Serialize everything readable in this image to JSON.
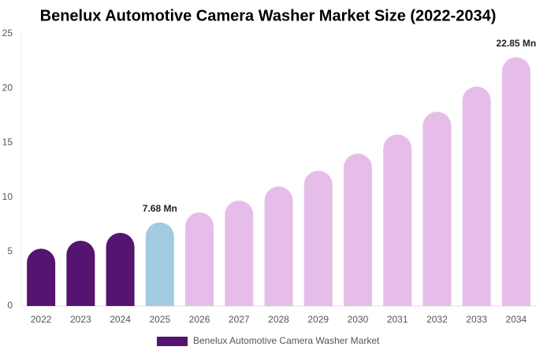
{
  "chart_data": {
    "type": "bar",
    "title": "Benelux Automotive Camera Washer Market Size (2022-2034)",
    "categories": [
      "2022",
      "2023",
      "2024",
      "2025",
      "2026",
      "2027",
      "2028",
      "2029",
      "2030",
      "2031",
      "2032",
      "2033",
      "2034"
    ],
    "series": [
      {
        "name": "Benelux Automotive Camera Washer Market",
        "color": "#541470",
        "values": [
          5.27,
          6.0,
          6.72,
          7.68,
          8.6,
          9.68,
          10.98,
          12.43,
          14.0,
          15.75,
          17.85,
          20.16,
          22.85
        ],
        "value_labels": [
          null,
          null,
          null,
          "7.68 Mn",
          null,
          null,
          null,
          null,
          null,
          null,
          null,
          null,
          "22.85 Mn"
        ],
        "point_colors": [
          "#541470",
          "#541470",
          "#541470",
          "#a3cbdf",
          "#e6bde9",
          "#e6bde9",
          "#e6bde9",
          "#e6bde9",
          "#e6bde9",
          "#e6bde9",
          "#e6bde9",
          "#e6bde9",
          "#e6bde9"
        ]
      }
    ],
    "ylim": [
      0,
      25
    ],
    "yticks": [
      0,
      5,
      10,
      15,
      20,
      25
    ],
    "grid": false,
    "legend": "bottom"
  }
}
